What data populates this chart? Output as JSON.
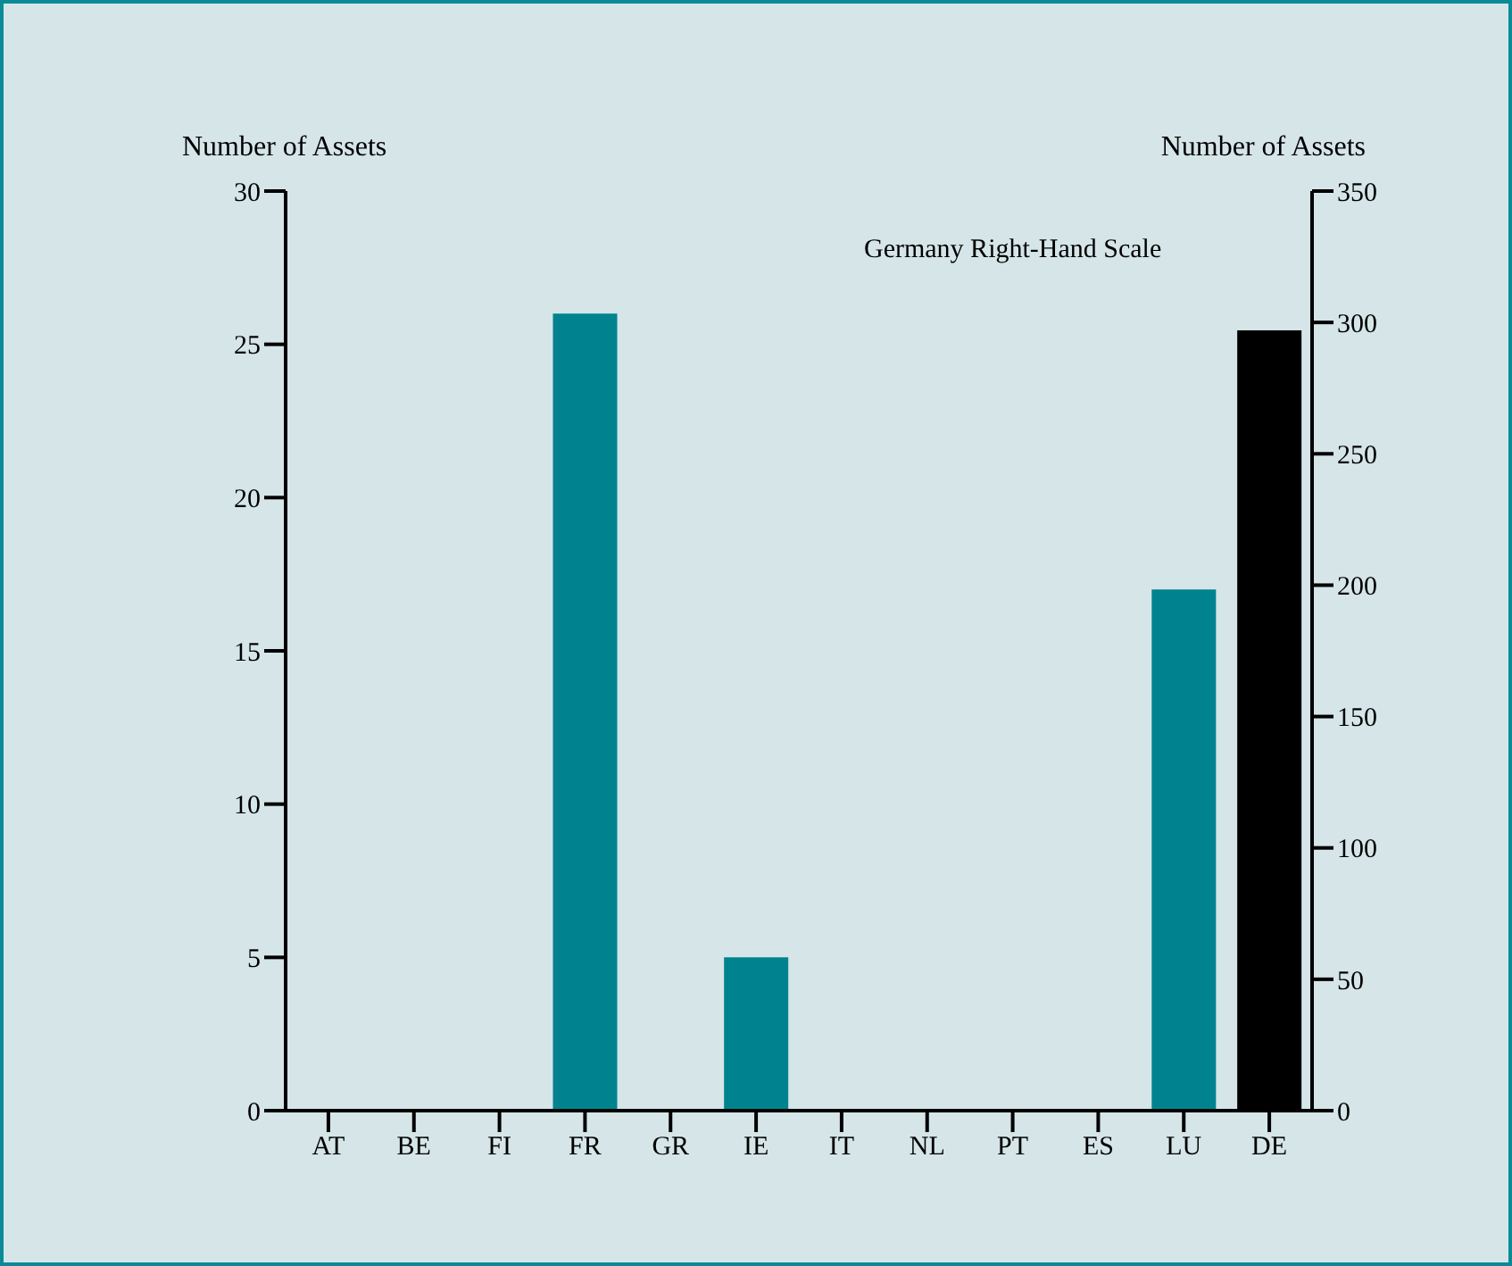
{
  "chart_data": {
    "type": "bar",
    "ylabel": "Number of Assets",
    "y2label": "Number of Assets",
    "categories": [
      "AT",
      "BE",
      "FI",
      "FR",
      "GR",
      "IE",
      "IT",
      "NL",
      "PT",
      "ES",
      "LU",
      "DE"
    ],
    "series": [
      {
        "color": "#00838f",
        "values": [
          0,
          0,
          0,
          26,
          0,
          5,
          0,
          0,
          0,
          0,
          17,
          null
        ]
      },
      {
        "color": "#000000",
        "axis": "y2",
        "values": [
          null,
          null,
          null,
          null,
          null,
          null,
          null,
          null,
          null,
          null,
          null,
          297
        ]
      }
    ],
    "ylim": [
      0,
      30
    ],
    "yticks": [
      0,
      5,
      10,
      15,
      20,
      25,
      30
    ],
    "y2lim": [
      0,
      350
    ],
    "y2ticks": [
      0,
      50,
      100,
      150,
      200,
      250,
      300,
      350
    ],
    "annotations": [
      "Germany Right-Hand Scale"
    ],
    "grid": false,
    "legend": false
  }
}
